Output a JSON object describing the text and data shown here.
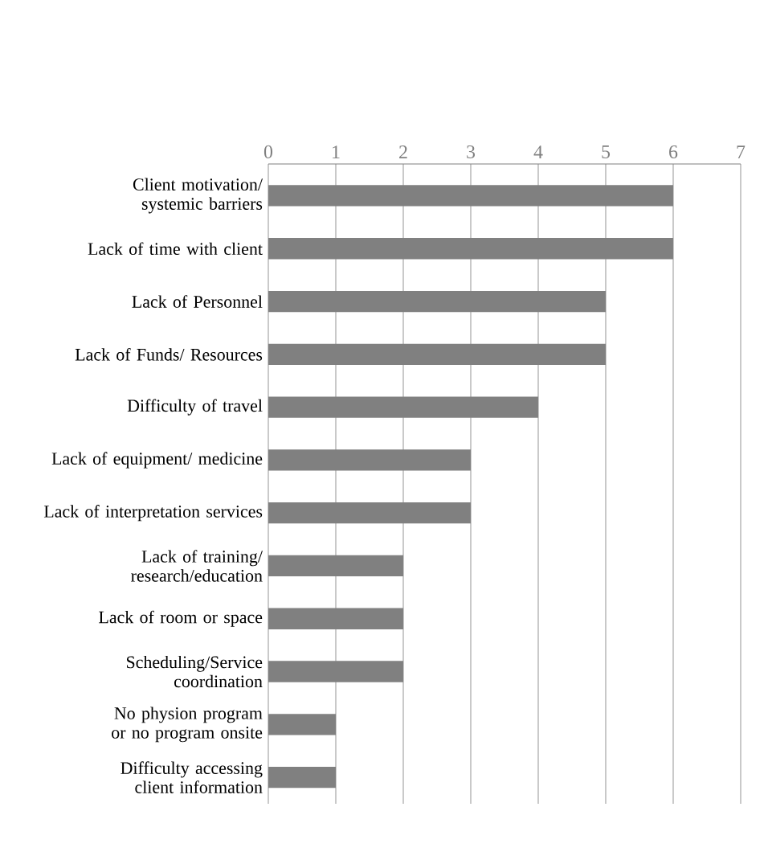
{
  "chart_data": {
    "type": "bar",
    "orientation": "horizontal",
    "categories": [
      "Client motivation/ systemic barriers",
      "Lack of time with client",
      "Lack of Personnel",
      "Lack of Funds/ Resources",
      "Difficulty of travel",
      "Lack of equipment/ medicine",
      "Lack of interpretation services",
      "Lack of training/ research/education",
      "Lack of room or space",
      "Scheduling/Service coordination",
      "No physion program or no program onsite",
      "Difficulty accessing client information"
    ],
    "values": [
      6,
      6,
      5,
      5,
      4,
      3,
      3,
      2,
      2,
      2,
      1,
      1
    ],
    "color": "#808080",
    "xlim": [
      0,
      7
    ],
    "xticks": [
      0,
      1,
      2,
      3,
      4,
      5,
      6,
      7
    ],
    "grid": "x"
  }
}
